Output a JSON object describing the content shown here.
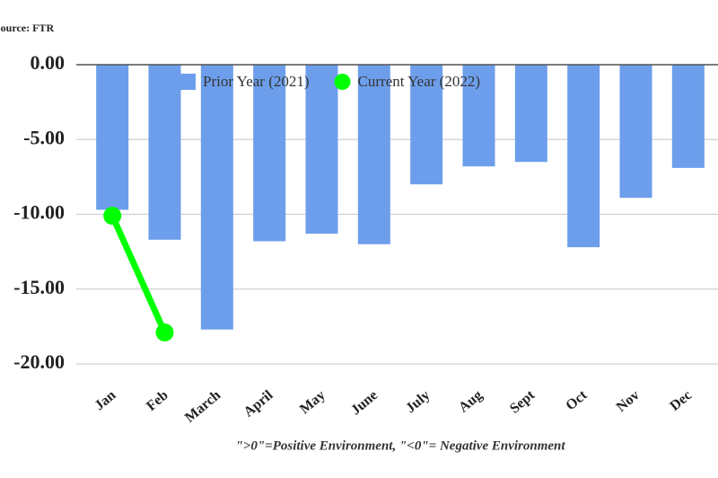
{
  "chart_data": {
    "type": "bar",
    "source": "Source: FTR",
    "footnote": "\">0\"=Positive Environment, \"<0\"= Negative Environment",
    "categories": [
      "Jan",
      "Feb",
      "March",
      "April",
      "May",
      "June",
      "July",
      "Aug",
      "Sept",
      "Oct",
      "Nov",
      "Dec"
    ],
    "series": [
      {
        "name": "Prior Year (2021)",
        "type": "bar",
        "color": "#6d9eeb",
        "values": [
          -9.7,
          -11.7,
          -17.7,
          -11.8,
          -11.3,
          -12.0,
          -8.0,
          -6.8,
          -6.5,
          -12.2,
          -8.9,
          -6.9
        ]
      },
      {
        "name": "Current Year (2022)",
        "type": "line",
        "color": "#00ff00",
        "values": [
          -10.1,
          -17.9,
          null,
          null,
          null,
          null,
          null,
          null,
          null,
          null,
          null,
          null
        ]
      }
    ],
    "ylim": [
      -20,
      0
    ],
    "yticks": [
      {
        "value": 0,
        "label": "0.00"
      },
      {
        "value": -5,
        "label": "-5.00"
      },
      {
        "value": -10,
        "label": "-10.00"
      },
      {
        "value": -15,
        "label": "-15.00"
      },
      {
        "value": -20,
        "label": "-20.00"
      }
    ],
    "grid": true
  }
}
